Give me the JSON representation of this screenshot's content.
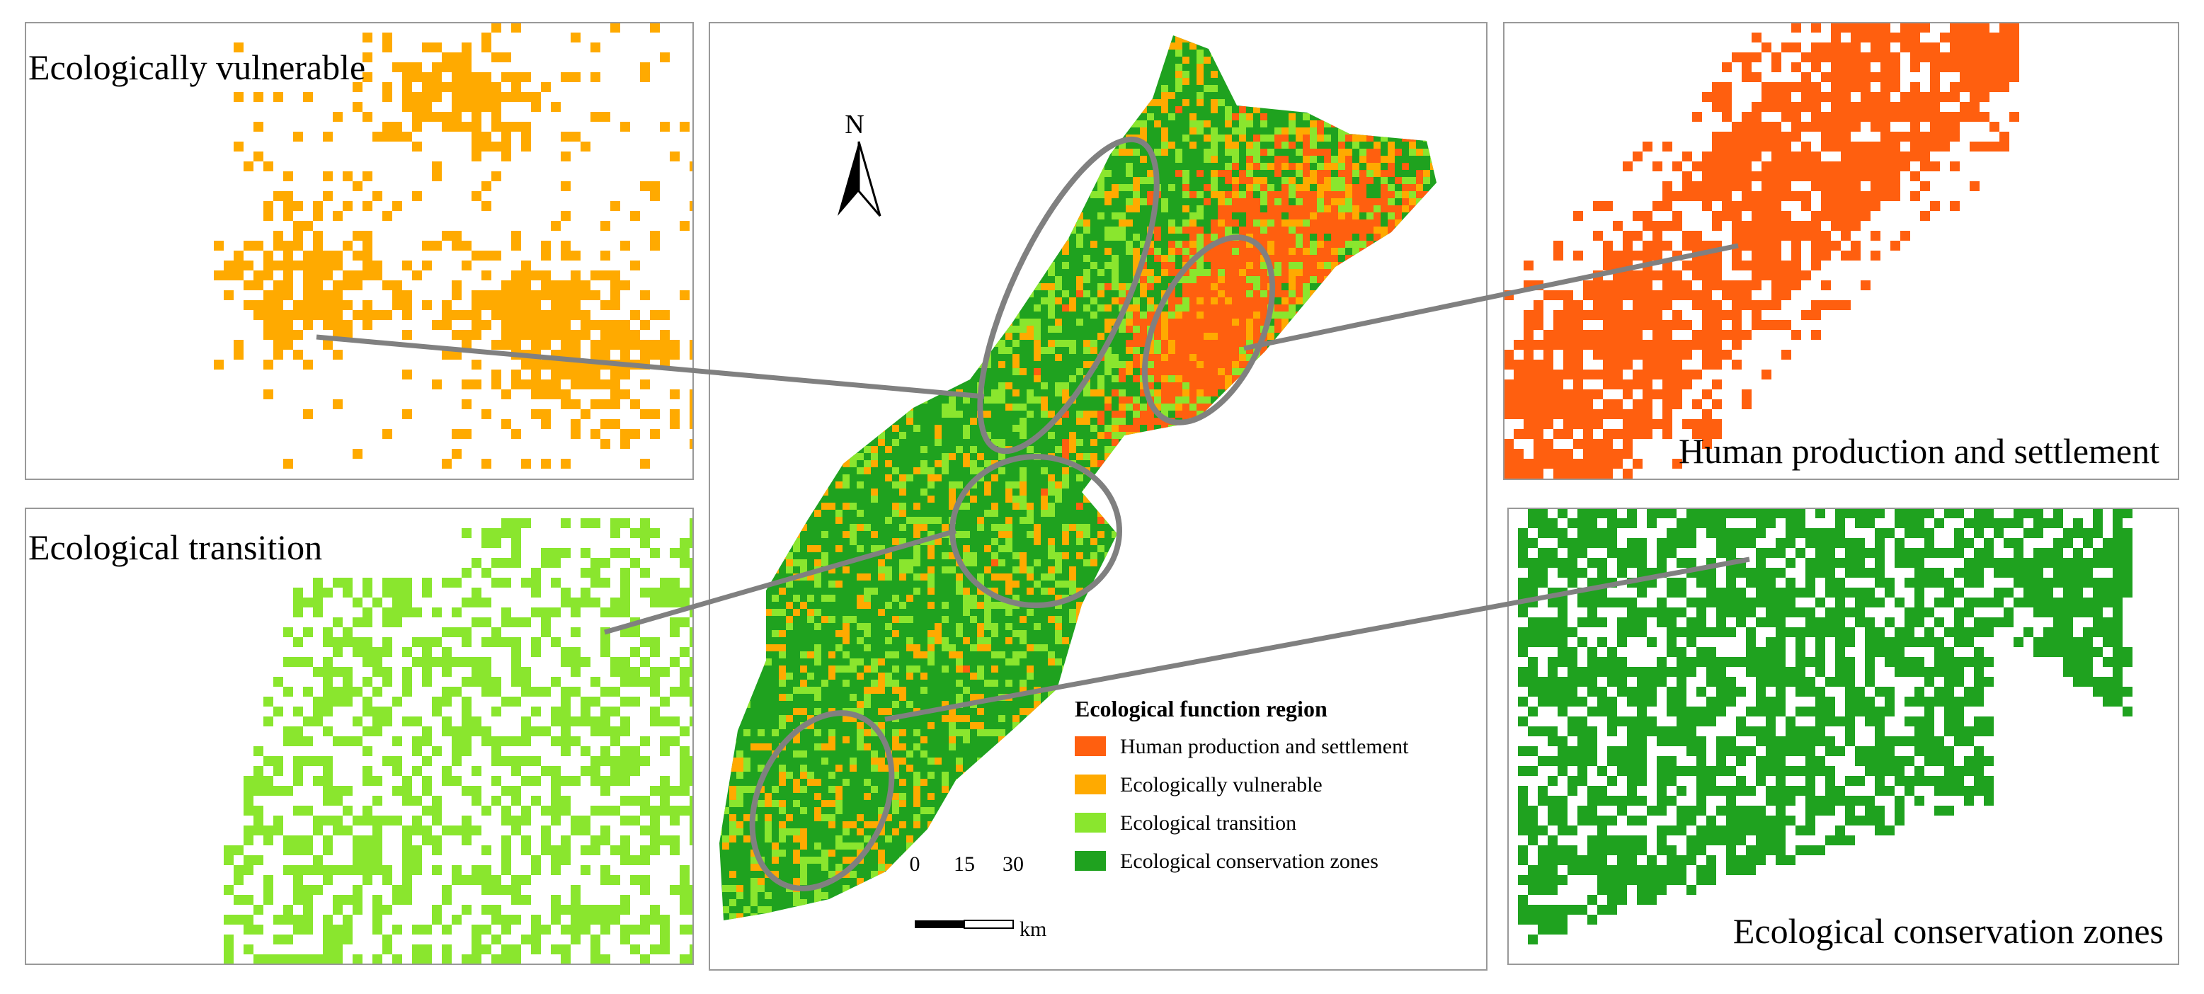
{
  "panels": [
    {
      "label": "Ecologically vulnerable"
    },
    {
      "label": "Ecological transition"
    },
    {
      "label": "Human production and settlement"
    },
    {
      "label": "Ecological conservation zones"
    }
  ],
  "map": {
    "north": "N",
    "legend": {
      "title": "Ecological function region",
      "items": [
        {
          "label": "Human production and settlement",
          "color": "#ff5f0f"
        },
        {
          "label": "Ecologically vulnerable",
          "color": "#ffaa00"
        },
        {
          "label": "Ecological transition",
          "color": "#8ae62e"
        },
        {
          "label": "Ecological conservation zones",
          "color": "#1fa21f"
        }
      ]
    },
    "scale": {
      "ticks": [
        "0",
        "15",
        "30"
      ],
      "unit": "km"
    }
  }
}
